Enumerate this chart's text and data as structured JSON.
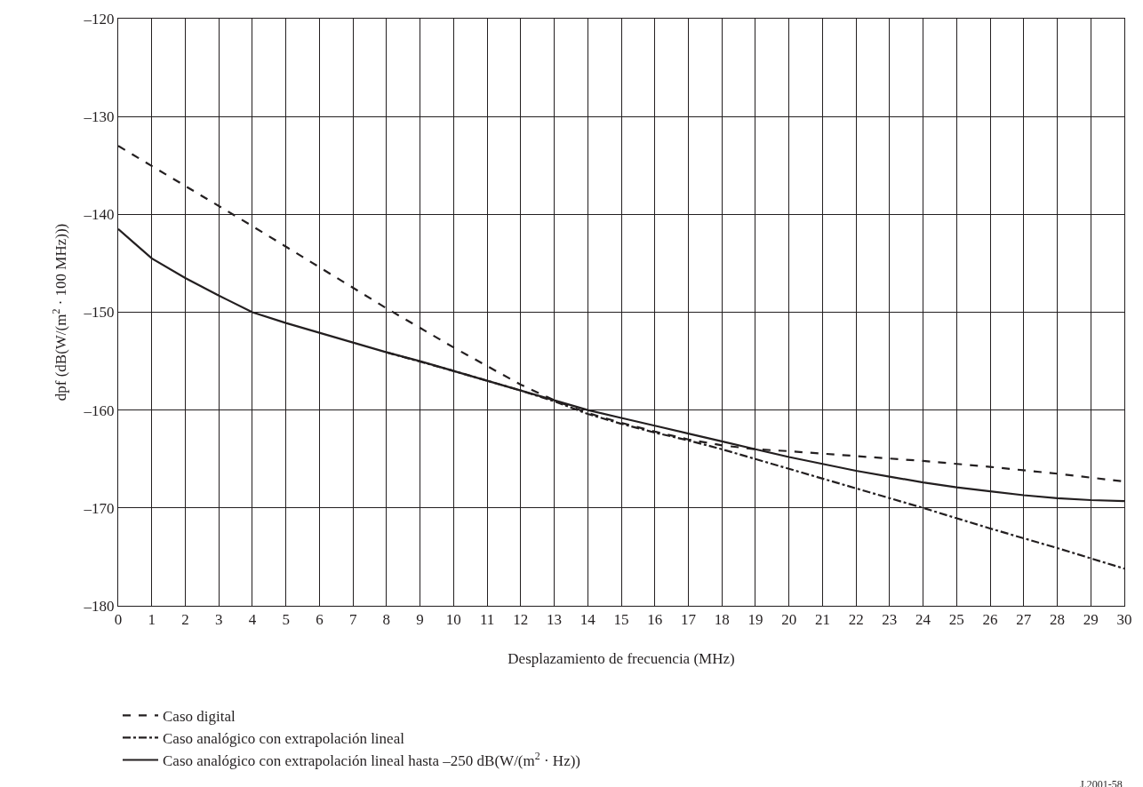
{
  "chart_data": {
    "type": "line",
    "xlabel": "Desplazamiento de frecuencia (MHz)",
    "ylabel": "dpf (dB(W/(m$^{2}$ · 100 MHz)))",
    "xlim": [
      0,
      30
    ],
    "xticks": [
      0,
      1,
      2,
      3,
      4,
      5,
      6,
      7,
      8,
      9,
      10,
      11,
      12,
      13,
      14,
      15,
      16,
      17,
      18,
      19,
      20,
      21,
      22,
      23,
      24,
      25,
      26,
      27,
      28,
      29,
      30
    ],
    "ylim": [
      -180,
      -120
    ],
    "yticks": [
      {
        "value": -180,
        "label": "–180"
      },
      {
        "value": -170,
        "label": "–170"
      },
      {
        "value": -160,
        "label": "–160"
      },
      {
        "value": -150,
        "label": "–150"
      },
      {
        "value": -140,
        "label": "–140"
      },
      {
        "value": -130,
        "label": "–130"
      },
      {
        "value": -120,
        "label": "–120"
      }
    ],
    "grid": true,
    "legend": "bottom",
    "marker": "none",
    "series": [
      {
        "name": "Caso digital",
        "color": "#231f20",
        "line_style": "dashed",
        "x": [
          0,
          4,
          8,
          10,
          12,
          13,
          14,
          15,
          16,
          17,
          18,
          19,
          20,
          22,
          24,
          26,
          28,
          30
        ],
        "values": [
          -133,
          -141.2,
          -149.6,
          -153.6,
          -157.4,
          -159,
          -160.3,
          -161.3,
          -162.2,
          -163,
          -163.6,
          -164,
          -164.2,
          -164.7,
          -165.2,
          -165.8,
          -166.5,
          -167.3
        ]
      },
      {
        "name": "Caso analógico con extrapolación lineal",
        "color": "#231f20",
        "line_style": "dashdot",
        "x": [
          8,
          10,
          12,
          13,
          14,
          15,
          16,
          17,
          18,
          19,
          20,
          22,
          24,
          26,
          28,
          30
        ],
        "values": [
          -154.1,
          -156,
          -158,
          -159.1,
          -160.4,
          -161.4,
          -162.3,
          -163.1,
          -164,
          -165,
          -166,
          -168,
          -170,
          -172.1,
          -174.1,
          -176.2
        ]
      },
      {
        "name": "Caso analógico con extrapolación lineal hasta –250 dB(W/(m$^{2}$ · Hz))",
        "color": "#231f20",
        "line_style": "solid",
        "x": [
          0,
          0.5,
          1,
          2,
          3,
          4,
          5,
          6,
          7,
          8,
          9,
          10,
          11,
          12,
          13,
          14,
          15,
          16,
          17,
          18,
          19,
          20,
          21,
          22,
          23,
          24,
          25,
          26,
          27,
          28,
          29,
          30
        ],
        "values": [
          -141.5,
          -143,
          -144.5,
          -146.5,
          -148.3,
          -150,
          -151.1,
          -152.1,
          -153.1,
          -154.1,
          -155,
          -156,
          -157,
          -158,
          -159,
          -160,
          -160.8,
          -161.6,
          -162.4,
          -163.2,
          -164,
          -164.8,
          -165.5,
          -166.2,
          -166.8,
          -167.4,
          -167.9,
          -168.3,
          -168.7,
          -169,
          -169.2,
          -169.3
        ]
      }
    ],
    "annotations": [
      "J.2001-58"
    ]
  }
}
